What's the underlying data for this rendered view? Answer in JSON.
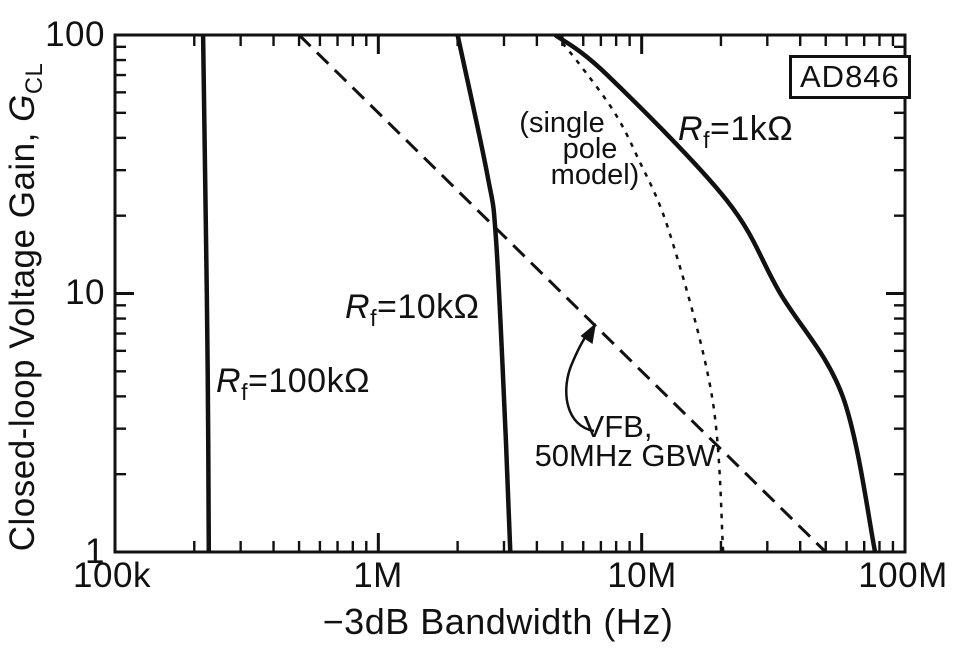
{
  "chart_data": {
    "type": "line",
    "title": "",
    "badge": "AD846",
    "xlabel": "−3dB Bandwidth (Hz)",
    "ylabel": "Closed-loop Voltage Gain, G_CL",
    "x_scale": "log",
    "y_scale": "log",
    "xlim": [
      100000,
      100000000
    ],
    "ylim": [
      1,
      100
    ],
    "x_tick_labels": [
      "100k",
      "1M",
      "10M",
      "100M"
    ],
    "y_tick_labels": [
      "1",
      "10",
      "100"
    ],
    "grid": false,
    "legend": "inline-labels",
    "series": [
      {
        "name": "Rf=100kΩ",
        "style": "solid",
        "points_hz_gain": [
          [
            216000,
            100
          ],
          [
            221000,
            20
          ],
          [
            225000,
            5
          ],
          [
            227000,
            1
          ]
        ]
      },
      {
        "name": "Rf=10kΩ",
        "style": "solid",
        "points_hz_gain": [
          [
            2000000,
            100
          ],
          [
            2590000,
            29
          ],
          [
            2800000,
            16
          ],
          [
            3050000,
            2.7
          ],
          [
            3170000,
            1
          ]
        ]
      },
      {
        "name": "Rf=1kΩ",
        "style": "solid",
        "points_hz_gain": [
          [
            4700000,
            100
          ],
          [
            7400000,
            70
          ],
          [
            21000000,
            23
          ],
          [
            33600000,
            10
          ],
          [
            58000000,
            4
          ],
          [
            77000000,
            1
          ]
        ]
      },
      {
        "name": "VFB, 50MHz GBW",
        "style": "dashed",
        "points_hz_gain": [
          [
            500000,
            100
          ],
          [
            50000000,
            1
          ]
        ]
      },
      {
        "name": "(single pole model)",
        "style": "dotted",
        "points_hz_gain": [
          [
            4700000,
            100
          ],
          [
            5700000,
            79
          ],
          [
            7800000,
            51
          ],
          [
            9600000,
            34
          ],
          [
            12800000,
            17
          ],
          [
            18500000,
            4
          ],
          [
            20400000,
            1
          ]
        ]
      }
    ],
    "annotations": [
      "AD846",
      "Rf=1kΩ",
      "Rf=10kΩ",
      "Rf=100kΩ",
      "(single pole model)",
      "VFB, 50MHz GBW"
    ]
  },
  "labels": {
    "badge": "AD846",
    "x_title": "−3dB Bandwidth (Hz)",
    "y_title_main": "Closed-loop Voltage Gain, ",
    "y_title_g": "G",
    "y_title_sub": "CL",
    "x_ticks": [
      "100k",
      "1M",
      "10M",
      "100M"
    ],
    "y_ticks": [
      "1",
      "10",
      "100"
    ],
    "rf100k": {
      "r": "R",
      "sub": "f",
      "rest": "=100kΩ"
    },
    "rf10k": {
      "r": "R",
      "sub": "f",
      "rest": "=10kΩ"
    },
    "rf1k": {
      "r": "R",
      "sub": "f",
      "rest": "=1kΩ"
    },
    "single_pole": {
      "line1": "(single",
      "line2": "pole",
      "line3": "model)"
    },
    "vfb": {
      "line1": "VFB,",
      "line2": "50MHz GBW"
    }
  },
  "colors": {
    "ink": "#111111",
    "background": "#ffffff"
  }
}
